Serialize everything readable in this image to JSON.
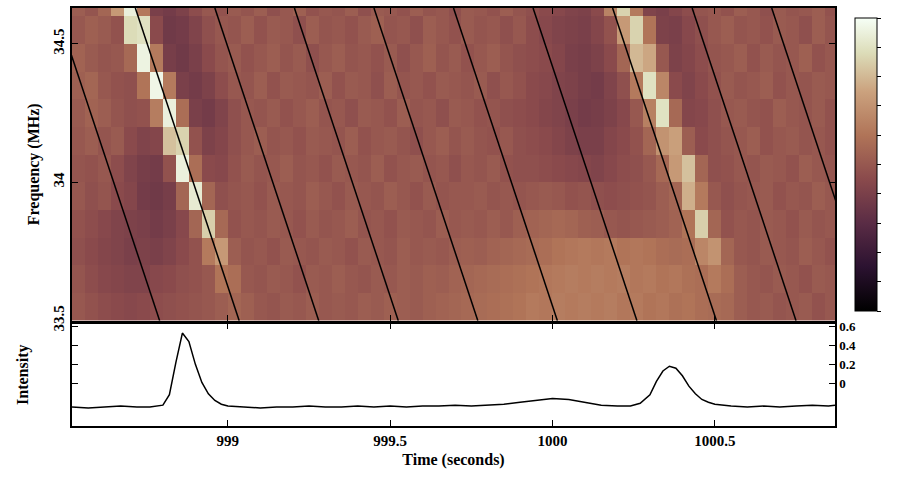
{
  "chart_data": [
    {
      "type": "heatmap",
      "ylabel": "Frequency (MHz)",
      "xlim": [
        998.52,
        1000.87
      ],
      "xticks": [
        999,
        999.5,
        1000,
        1000.5
      ],
      "ylim": [
        33.5,
        34.63
      ],
      "yticks": [
        33.5,
        34,
        34.5
      ],
      "tick_labels": "y",
      "zlim": [
        0,
        1
      ],
      "zticks": [
        0,
        0.1,
        0.2,
        0.3,
        0.4,
        0.5,
        0.6,
        0.7,
        0.8,
        0.9,
        1
      ],
      "x": [
        998.54,
        998.58,
        998.62,
        998.66,
        998.7,
        998.74,
        998.78,
        998.82,
        998.86,
        998.9,
        998.94,
        998.98,
        999.02,
        999.06,
        999.1,
        999.14,
        999.18,
        999.22,
        999.26,
        999.3,
        999.34,
        999.38,
        999.42,
        999.46,
        999.5,
        999.54,
        999.58,
        999.62,
        999.66,
        999.7,
        999.74,
        999.78,
        999.82,
        999.86,
        999.9,
        999.94,
        999.98,
        1000.02,
        1000.06,
        1000.1,
        1000.14,
        1000.18,
        1000.22,
        1000.26,
        1000.3,
        1000.34,
        1000.38,
        1000.42,
        1000.46,
        1000.5,
        1000.54,
        1000.58,
        1000.62,
        1000.66,
        1000.7,
        1000.74,
        1000.78,
        1000.82,
        1000.86
      ],
      "y": [
        33.55,
        33.65,
        33.75,
        33.85,
        33.95,
        34.05,
        34.15,
        34.25,
        34.35,
        34.45,
        34.55,
        34.65
      ],
      "z": [
        [
          0.5,
          0.48,
          0.46,
          0.45,
          0.44,
          0.45,
          0.46,
          0.47,
          0.48,
          0.49,
          0.5,
          0.52,
          0.55,
          0.53,
          0.5,
          0.49,
          0.51,
          0.5,
          0.52,
          0.5,
          0.51,
          0.5,
          0.52,
          0.51,
          0.53,
          0.52,
          0.51,
          0.53,
          0.54,
          0.55,
          0.56,
          0.57,
          0.58,
          0.59,
          0.6,
          0.62,
          0.61,
          0.63,
          0.62,
          0.63,
          0.62,
          0.63,
          0.61,
          0.62,
          0.6,
          0.61,
          0.59,
          0.6,
          0.58,
          0.57,
          0.56,
          0.52,
          0.5,
          0.51,
          0.49,
          0.5,
          0.51,
          0.48,
          0.5
        ],
        [
          0.49,
          0.46,
          0.44,
          0.43,
          0.42,
          0.42,
          0.44,
          0.45,
          0.47,
          0.48,
          0.5,
          0.6,
          0.58,
          0.5,
          0.49,
          0.51,
          0.5,
          0.48,
          0.51,
          0.5,
          0.52,
          0.5,
          0.49,
          0.51,
          0.5,
          0.52,
          0.51,
          0.53,
          0.52,
          0.54,
          0.55,
          0.56,
          0.57,
          0.58,
          0.59,
          0.6,
          0.61,
          0.62,
          0.63,
          0.62,
          0.63,
          0.62,
          0.63,
          0.61,
          0.62,
          0.6,
          0.61,
          0.59,
          0.58,
          0.62,
          0.58,
          0.52,
          0.5,
          0.49,
          0.51,
          0.5,
          0.48,
          0.51,
          0.5
        ],
        [
          0.47,
          0.45,
          0.43,
          0.42,
          0.4,
          0.41,
          0.4,
          0.42,
          0.45,
          0.48,
          0.62,
          0.72,
          0.52,
          0.49,
          0.5,
          0.48,
          0.51,
          0.5,
          0.49,
          0.51,
          0.5,
          0.48,
          0.51,
          0.5,
          0.49,
          0.52,
          0.5,
          0.51,
          0.5,
          0.52,
          0.53,
          0.52,
          0.54,
          0.55,
          0.56,
          0.57,
          0.58,
          0.6,
          0.61,
          0.62,
          0.61,
          0.62,
          0.6,
          0.61,
          0.6,
          0.58,
          0.57,
          0.58,
          0.66,
          0.7,
          0.55,
          0.5,
          0.49,
          0.51,
          0.5,
          0.49,
          0.52,
          0.5,
          0.48
        ],
        [
          0.48,
          0.46,
          0.44,
          0.42,
          0.41,
          0.4,
          0.38,
          0.4,
          0.44,
          0.55,
          0.85,
          0.56,
          0.48,
          0.5,
          0.49,
          0.51,
          0.5,
          0.48,
          0.51,
          0.49,
          0.5,
          0.52,
          0.49,
          0.5,
          0.48,
          0.51,
          0.5,
          0.49,
          0.52,
          0.5,
          0.51,
          0.5,
          0.52,
          0.5,
          0.53,
          0.54,
          0.55,
          0.56,
          0.55,
          0.53,
          0.52,
          0.5,
          0.49,
          0.5,
          0.51,
          0.52,
          0.54,
          0.6,
          0.85,
          0.55,
          0.48,
          0.5,
          0.49,
          0.51,
          0.5,
          0.48,
          0.51,
          0.49,
          0.5
        ],
        [
          0.5,
          0.47,
          0.49,
          0.45,
          0.43,
          0.38,
          0.37,
          0.39,
          0.55,
          0.93,
          0.55,
          0.47,
          0.49,
          0.5,
          0.48,
          0.51,
          0.5,
          0.49,
          0.52,
          0.5,
          0.48,
          0.51,
          0.5,
          0.49,
          0.52,
          0.5,
          0.48,
          0.51,
          0.49,
          0.5,
          0.5,
          0.51,
          0.49,
          0.5,
          0.49,
          0.5,
          0.51,
          0.5,
          0.48,
          0.49,
          0.47,
          0.46,
          0.47,
          0.48,
          0.49,
          0.52,
          0.55,
          0.78,
          0.62,
          0.5,
          0.47,
          0.49,
          0.5,
          0.51,
          0.48,
          0.5,
          0.49,
          0.52,
          0.5
        ],
        [
          0.49,
          0.48,
          0.5,
          0.46,
          0.42,
          0.39,
          0.38,
          0.48,
          0.95,
          0.58,
          0.45,
          0.44,
          0.48,
          0.51,
          0.49,
          0.5,
          0.52,
          0.49,
          0.5,
          0.48,
          0.51,
          0.5,
          0.49,
          0.52,
          0.48,
          0.5,
          0.51,
          0.49,
          0.5,
          0.47,
          0.5,
          0.49,
          0.51,
          0.48,
          0.47,
          0.47,
          0.46,
          0.45,
          0.44,
          0.43,
          0.42,
          0.44,
          0.46,
          0.47,
          0.5,
          0.56,
          0.72,
          0.82,
          0.55,
          0.47,
          0.48,
          0.5,
          0.49,
          0.51,
          0.5,
          0.48,
          0.52,
          0.5,
          0.49
        ],
        [
          0.5,
          0.52,
          0.49,
          0.51,
          0.45,
          0.42,
          0.43,
          0.82,
          0.86,
          0.48,
          0.41,
          0.43,
          0.47,
          0.5,
          0.52,
          0.49,
          0.5,
          0.48,
          0.51,
          0.5,
          0.49,
          0.52,
          0.48,
          0.5,
          0.51,
          0.49,
          0.47,
          0.5,
          0.52,
          0.49,
          0.51,
          0.49,
          0.48,
          0.5,
          0.47,
          0.46,
          0.45,
          0.43,
          0.41,
          0.4,
          0.4,
          0.43,
          0.45,
          0.48,
          0.55,
          0.7,
          0.74,
          0.52,
          0.45,
          0.47,
          0.49,
          0.5,
          0.52,
          0.48,
          0.5,
          0.51,
          0.49,
          0.5,
          0.48
        ],
        [
          0.51,
          0.54,
          0.52,
          0.49,
          0.47,
          0.48,
          0.63,
          0.95,
          0.58,
          0.4,
          0.38,
          0.42,
          0.47,
          0.5,
          0.49,
          0.51,
          0.48,
          0.5,
          0.52,
          0.49,
          0.5,
          0.47,
          0.51,
          0.5,
          0.48,
          0.52,
          0.49,
          0.5,
          0.47,
          0.51,
          0.5,
          0.48,
          0.49,
          0.47,
          0.46,
          0.45,
          0.43,
          0.42,
          0.4,
          0.38,
          0.39,
          0.41,
          0.44,
          0.5,
          0.64,
          0.9,
          0.56,
          0.43,
          0.44,
          0.47,
          0.5,
          0.51,
          0.49,
          0.48,
          0.52,
          0.5,
          0.49,
          0.51,
          0.48
        ],
        [
          0.53,
          0.55,
          0.5,
          0.48,
          0.47,
          0.6,
          0.97,
          0.62,
          0.4,
          0.38,
          0.41,
          0.46,
          0.5,
          0.49,
          0.52,
          0.48,
          0.51,
          0.5,
          0.49,
          0.52,
          0.48,
          0.51,
          0.5,
          0.47,
          0.52,
          0.49,
          0.5,
          0.48,
          0.51,
          0.5,
          0.49,
          0.51,
          0.47,
          0.5,
          0.48,
          0.45,
          0.44,
          0.42,
          0.41,
          0.39,
          0.38,
          0.42,
          0.47,
          0.62,
          0.9,
          0.66,
          0.45,
          0.42,
          0.45,
          0.48,
          0.51,
          0.49,
          0.5,
          0.52,
          0.48,
          0.5,
          0.49,
          0.51,
          0.5
        ],
        [
          0.54,
          0.51,
          0.49,
          0.5,
          0.56,
          0.96,
          0.62,
          0.39,
          0.37,
          0.4,
          0.45,
          0.49,
          0.51,
          0.48,
          0.5,
          0.52,
          0.49,
          0.51,
          0.47,
          0.5,
          0.52,
          0.49,
          0.5,
          0.48,
          0.51,
          0.47,
          0.5,
          0.53,
          0.49,
          0.51,
          0.48,
          0.5,
          0.52,
          0.49,
          0.47,
          0.46,
          0.45,
          0.43,
          0.4,
          0.39,
          0.41,
          0.45,
          0.55,
          0.8,
          0.76,
          0.5,
          0.41,
          0.43,
          0.46,
          0.49,
          0.5,
          0.52,
          0.48,
          0.51,
          0.49,
          0.5,
          0.53,
          0.48,
          0.5
        ],
        [
          0.5,
          0.53,
          0.51,
          0.48,
          0.88,
          0.9,
          0.45,
          0.37,
          0.38,
          0.42,
          0.47,
          0.5,
          0.49,
          0.52,
          0.48,
          0.51,
          0.5,
          0.47,
          0.52,
          0.49,
          0.5,
          0.48,
          0.51,
          0.53,
          0.49,
          0.5,
          0.47,
          0.52,
          0.5,
          0.48,
          0.51,
          0.49,
          0.5,
          0.47,
          0.5,
          0.46,
          0.44,
          0.42,
          0.41,
          0.4,
          0.43,
          0.48,
          0.72,
          0.86,
          0.6,
          0.41,
          0.4,
          0.44,
          0.47,
          0.5,
          0.52,
          0.49,
          0.5,
          0.48,
          0.51,
          0.5,
          0.47,
          0.52,
          0.49
        ],
        [
          0.52,
          0.49,
          0.55,
          0.72,
          0.95,
          0.62,
          0.4,
          0.38,
          0.41,
          0.46,
          0.5,
          0.48,
          0.51,
          0.49,
          0.52,
          0.47,
          0.5,
          0.53,
          0.48,
          0.5,
          0.49,
          0.52,
          0.47,
          0.51,
          0.5,
          0.48,
          0.52,
          0.49,
          0.5,
          0.47,
          0.51,
          0.5,
          0.48,
          0.52,
          0.49,
          0.47,
          0.45,
          0.44,
          0.42,
          0.41,
          0.45,
          0.65,
          0.86,
          0.62,
          0.42,
          0.4,
          0.43,
          0.46,
          0.49,
          0.5,
          0.48,
          0.52,
          0.5,
          0.47,
          0.51,
          0.49,
          0.5,
          0.52,
          0.48
        ]
      ],
      "sweep_lines": {
        "color": "#000000",
        "lines": [
          {
            "x": [
              998.47,
              998.79
            ],
            "y": [
              34.63,
              33.5
            ]
          },
          {
            "x": [
              998.715,
              999.035
            ],
            "y": [
              34.63,
              33.5
            ]
          },
          {
            "x": [
              998.96,
              999.28
            ],
            "y": [
              34.63,
              33.5
            ]
          },
          {
            "x": [
              999.205,
              999.525
            ],
            "y": [
              34.63,
              33.5
            ]
          },
          {
            "x": [
              999.45,
              999.77
            ],
            "y": [
              34.63,
              33.5
            ]
          },
          {
            "x": [
              999.695,
              1000.015
            ],
            "y": [
              34.63,
              33.5
            ]
          },
          {
            "x": [
              999.94,
              1000.26
            ],
            "y": [
              34.63,
              33.5
            ]
          },
          {
            "x": [
              1000.185,
              1000.505
            ],
            "y": [
              34.63,
              33.5
            ]
          },
          {
            "x": [
              1000.43,
              1000.75
            ],
            "y": [
              34.63,
              33.5
            ]
          },
          {
            "x": [
              1000.675,
              1000.995
            ],
            "y": [
              34.63,
              33.5
            ]
          }
        ]
      }
    },
    {
      "type": "line",
      "xlabel": "Time (seconds)",
      "ylabel": "Intensity",
      "color": "#000000",
      "xlim": [
        998.52,
        1000.87
      ],
      "xticks": [
        999,
        999.5,
        1000,
        1000.5
      ],
      "ylim": [
        -0.45,
        0.63
      ],
      "yticks": [
        0,
        0.2,
        0.4,
        0.6
      ],
      "x": [
        998.52,
        998.57,
        998.62,
        998.67,
        998.72,
        998.76,
        998.8,
        998.82,
        998.84,
        998.86,
        998.88,
        998.9,
        998.92,
        998.94,
        998.96,
        998.98,
        999.0,
        999.05,
        999.1,
        999.15,
        999.2,
        999.25,
        999.3,
        999.35,
        999.4,
        999.45,
        999.5,
        999.55,
        999.6,
        999.65,
        999.7,
        999.75,
        999.8,
        999.85,
        999.9,
        999.95,
        1000.0,
        1000.05,
        1000.1,
        1000.15,
        1000.2,
        1000.24,
        1000.27,
        1000.3,
        1000.32,
        1000.34,
        1000.36,
        1000.38,
        1000.4,
        1000.42,
        1000.44,
        1000.46,
        1000.48,
        1000.5,
        1000.55,
        1000.6,
        1000.65,
        1000.7,
        1000.75,
        1000.8,
        1000.85,
        1000.87
      ],
      "values": [
        -0.25,
        -0.26,
        -0.25,
        -0.24,
        -0.25,
        -0.25,
        -0.23,
        -0.12,
        0.22,
        0.53,
        0.44,
        0.2,
        0.01,
        -0.11,
        -0.18,
        -0.22,
        -0.24,
        -0.25,
        -0.26,
        -0.25,
        -0.25,
        -0.24,
        -0.25,
        -0.25,
        -0.24,
        -0.25,
        -0.24,
        -0.25,
        -0.24,
        -0.24,
        -0.23,
        -0.24,
        -0.23,
        -0.22,
        -0.2,
        -0.18,
        -0.16,
        -0.17,
        -0.2,
        -0.23,
        -0.24,
        -0.24,
        -0.21,
        -0.12,
        0.02,
        0.13,
        0.18,
        0.16,
        0.08,
        -0.03,
        -0.11,
        -0.17,
        -0.2,
        -0.22,
        -0.24,
        -0.25,
        -0.24,
        -0.25,
        -0.24,
        -0.23,
        -0.24,
        -0.23
      ]
    }
  ]
}
